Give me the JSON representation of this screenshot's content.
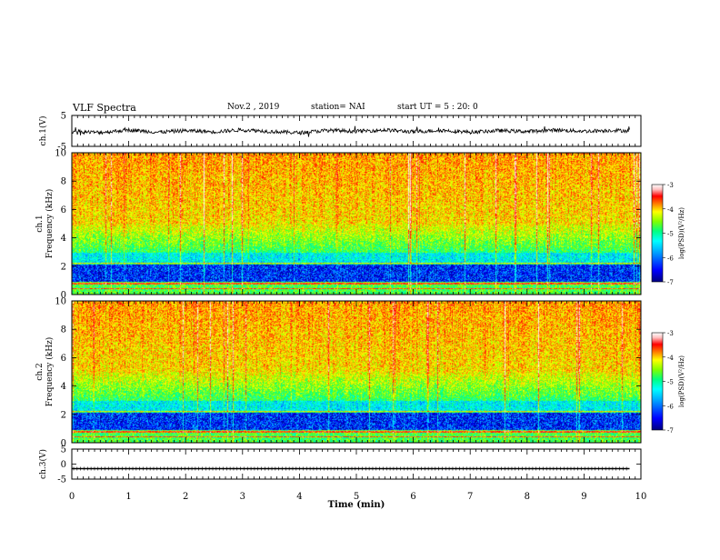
{
  "header": {
    "title": "VLF Spectra",
    "date": "Nov.2 , 2019",
    "station": "station= NAI",
    "start": "start UT = 5 : 20: 0"
  },
  "colors": {
    "colormap": [
      "#000080",
      "#0000ff",
      "#00a0ff",
      "#00ffff",
      "#00ff80",
      "#80ff00",
      "#ffff00",
      "#ff8000",
      "#ff0000",
      "#ffc0c0",
      "#ffffff"
    ],
    "trace": "#000000"
  },
  "chart_data": [
    {
      "type": "line",
      "panel": "ch1",
      "ylabel": "ch.1(V)",
      "ylim": [
        -5,
        5
      ],
      "yticks": [
        "5",
        "-5"
      ],
      "xlim": [
        0,
        10
      ],
      "x": [
        0,
        0.5,
        1,
        1.5,
        2,
        2.5,
        3,
        3.5,
        4,
        4.5,
        5,
        5.5,
        6,
        6.5,
        7,
        7.5,
        8,
        8.5,
        9,
        9.5,
        9.8
      ],
      "y": [
        -0.2,
        -0.5,
        0.3,
        -0.4,
        0.1,
        -0.3,
        0.4,
        -0.2,
        -0.6,
        0.2,
        -0.1,
        0.3,
        -0.3,
        0.2,
        -0.4,
        0.1,
        -0.2,
        0.3,
        -0.1,
        0.2,
        0.0
      ]
    },
    {
      "type": "heatmap",
      "panel": "ch1-spectrogram",
      "ylabel": "ch.1 Frequency (kHz)",
      "ylim": [
        0,
        10
      ],
      "yticks": [
        "0",
        "2",
        "4",
        "6",
        "8",
        "10"
      ],
      "xlim": [
        0,
        10
      ],
      "colorbar": {
        "label": "log(PSD)(V²/Hz)",
        "ticks": [
          "-3",
          "-4",
          "-5",
          "-6",
          "-7"
        ],
        "range": [
          -7,
          -3
        ]
      }
    },
    {
      "type": "heatmap",
      "panel": "ch2-spectrogram",
      "ylabel": "ch.2 Frequency (kHz)",
      "ylim": [
        0,
        10
      ],
      "yticks": [
        "0",
        "2",
        "4",
        "6",
        "8",
        "10"
      ],
      "xlim": [
        0,
        10
      ],
      "colorbar": {
        "label": "log(PSD)(V²/Hz)",
        "ticks": [
          "-3",
          "-4",
          "-5",
          "-6",
          "-7"
        ],
        "range": [
          -7,
          -3
        ]
      }
    },
    {
      "type": "line",
      "panel": "ch3",
      "ylabel": "ch.3(V)",
      "ylim": [
        -5,
        5
      ],
      "yticks": [
        "5",
        "0",
        "-5"
      ],
      "xlim": [
        0,
        10
      ],
      "x": [
        0,
        9.8
      ],
      "y": [
        -1.5,
        -1.5
      ]
    }
  ],
  "xaxis": {
    "label": "Time (min)",
    "ticks": [
      "0",
      "1",
      "2",
      "3",
      "4",
      "5",
      "6",
      "7",
      "8",
      "9",
      "10"
    ]
  }
}
